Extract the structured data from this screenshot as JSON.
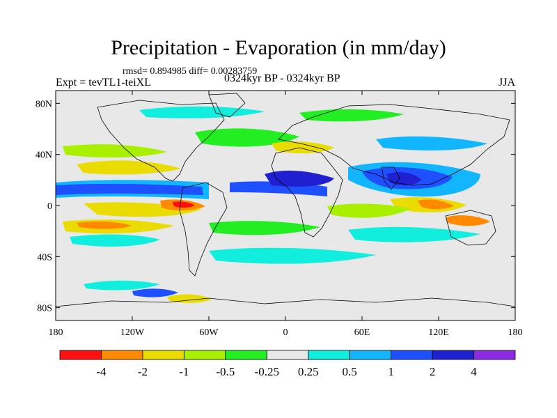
{
  "title": "Precipitation - Evaporation (in mm/day)",
  "stats": "rmsd= 0.894985 diff= 0.00283759",
  "experiment": "Expt = tevTL1-teiXL",
  "period": "0324kyr BP - 0324kyr BP",
  "season": "JJA",
  "map": {
    "lon_range": [
      -180,
      180
    ],
    "lat_range": [
      -90,
      90
    ],
    "lon_ticks": [
      "180",
      "120W",
      "60W",
      "0",
      "60E",
      "120E",
      "180"
    ],
    "lat_ticks": [
      "80N",
      "40N",
      "0",
      "40S",
      "80S"
    ],
    "background_color": "#e8e8e8"
  },
  "colorbar": {
    "labels": [
      "-4",
      "-2",
      "-1",
      "-0.5",
      "-0.25",
      "0.25",
      "0.5",
      "1",
      "2",
      "4"
    ],
    "colors": [
      "#ff1010",
      "#ff8a00",
      "#eadc00",
      "#a8f000",
      "#22ee22",
      "#e8e8e8",
      "#11eedd",
      "#12b6ff",
      "#1e50ff",
      "#2020d0",
      "#8a2be2"
    ]
  }
}
